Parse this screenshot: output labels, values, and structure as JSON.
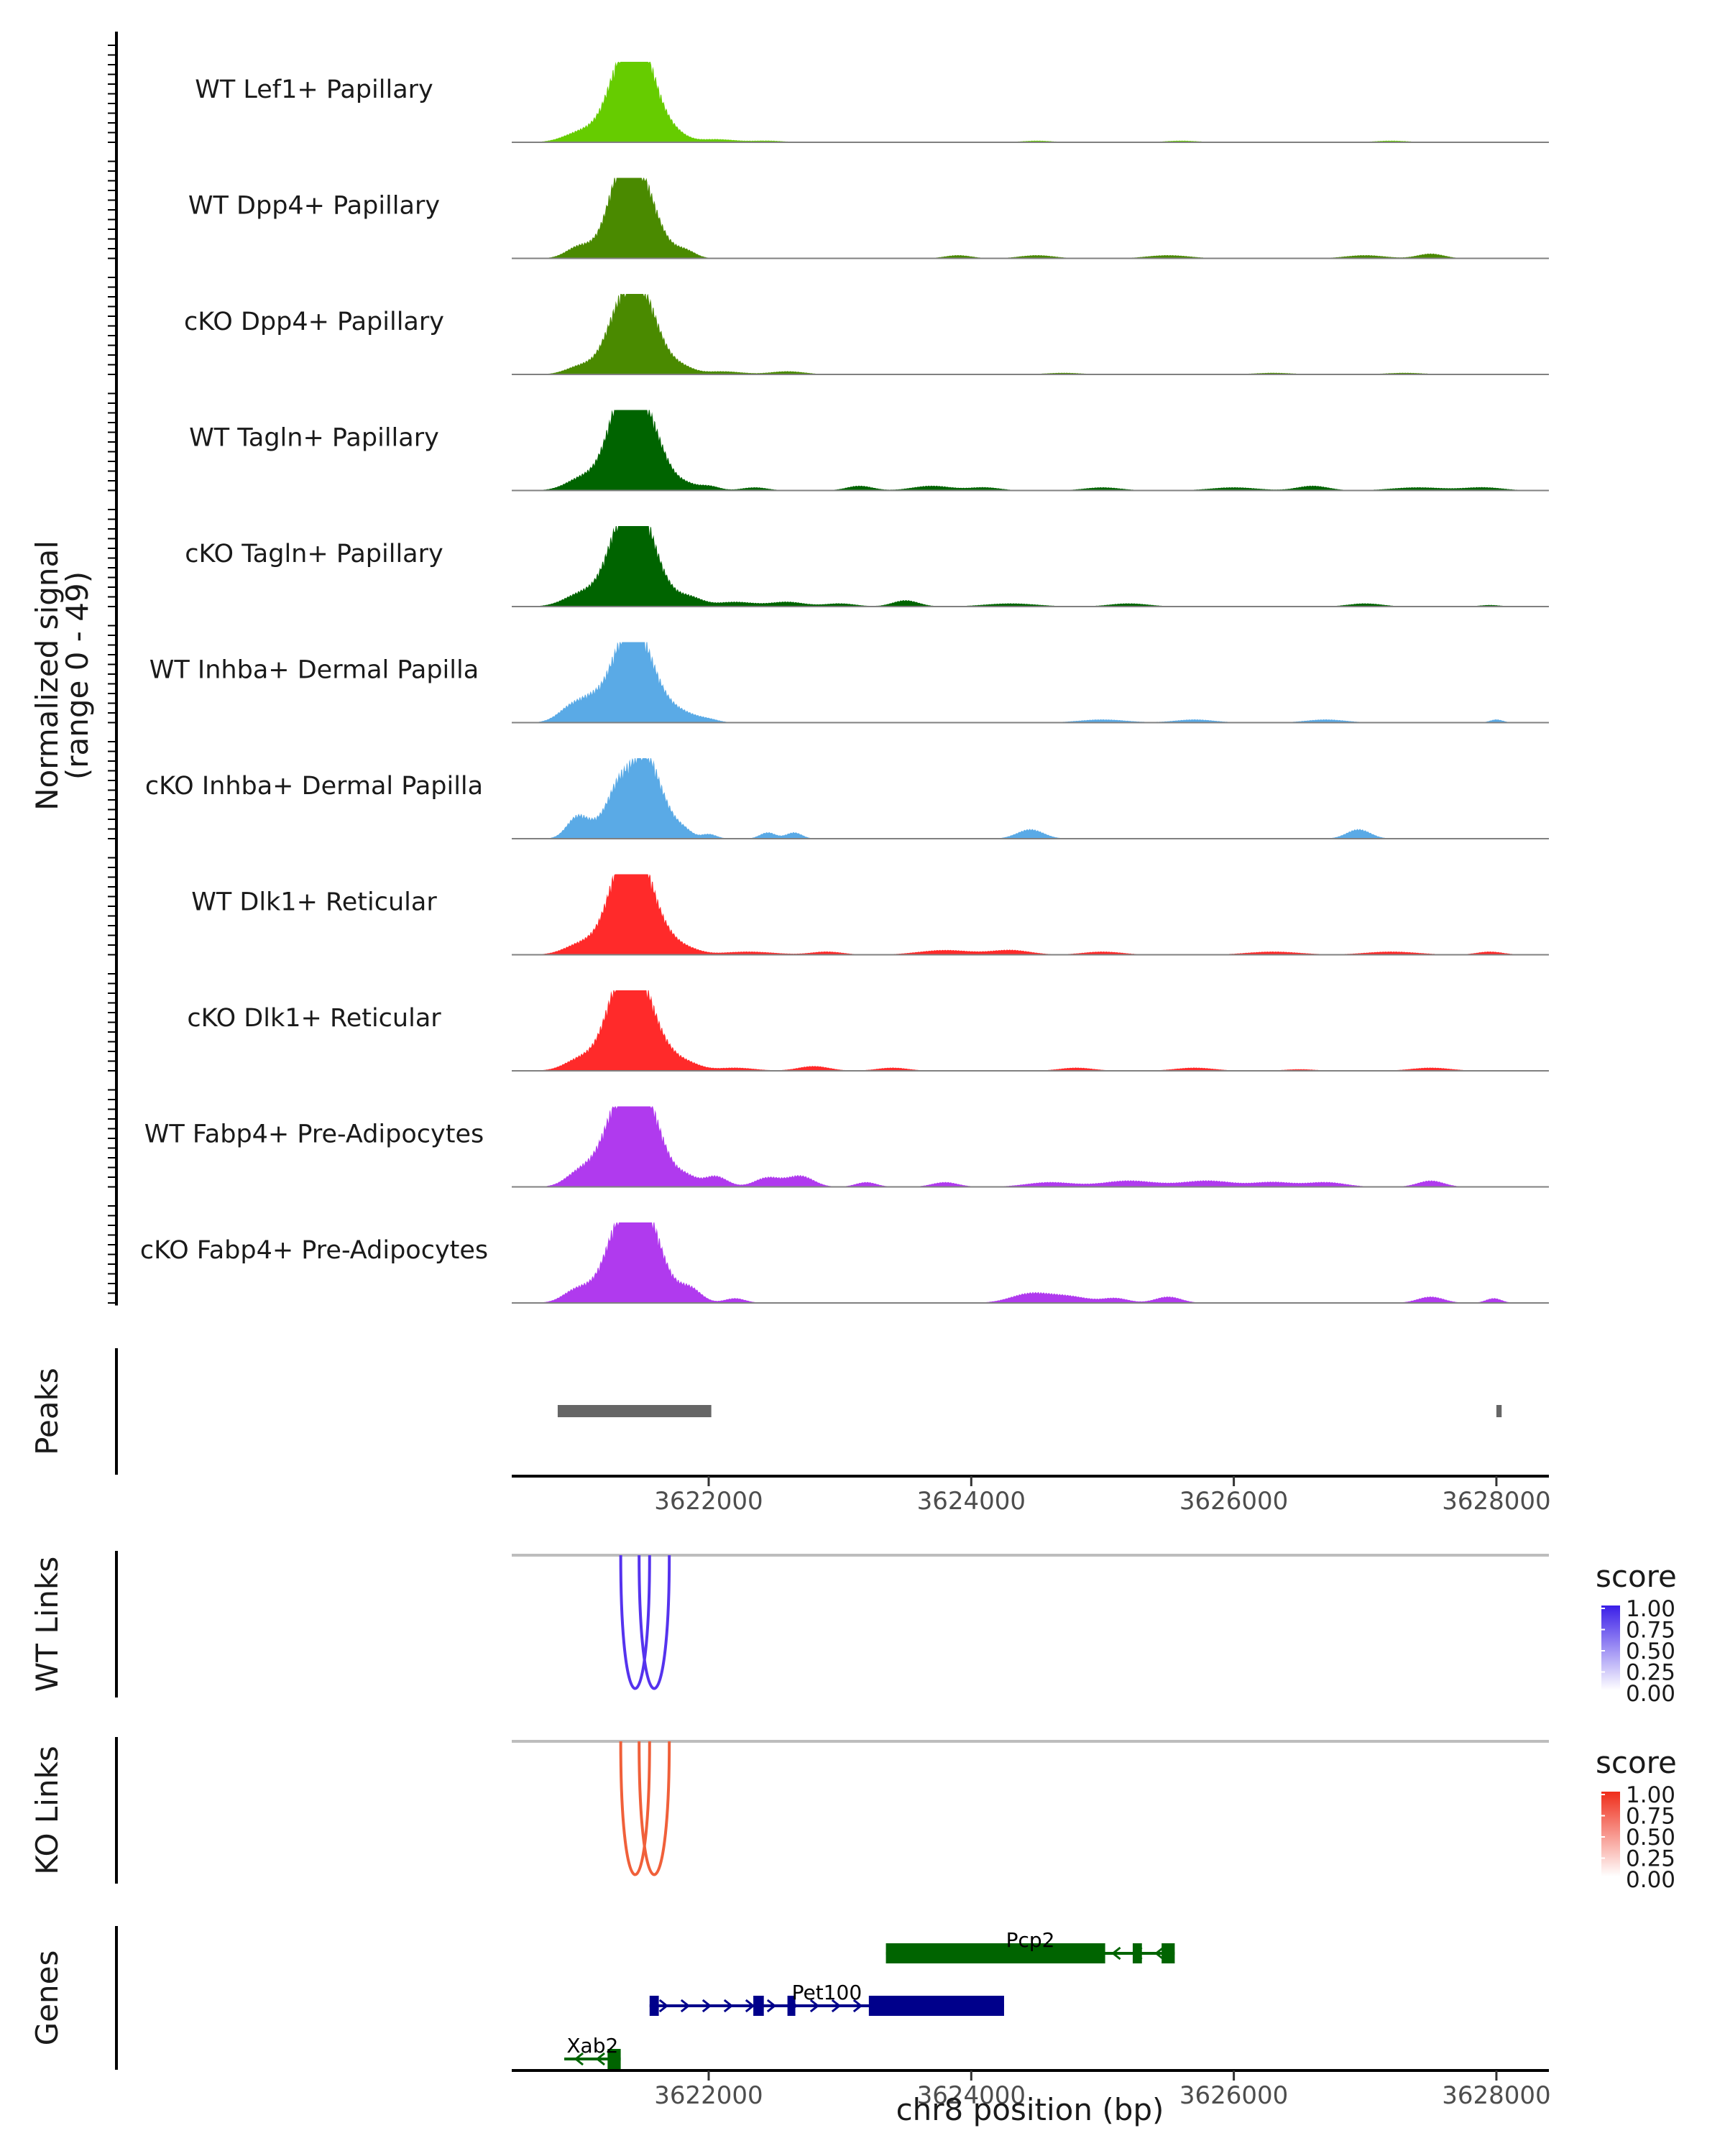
{
  "chart_data": {
    "type": "area",
    "title": "",
    "xlabel": "chr8 position (bp)",
    "x_range": [
      3620500,
      3628400
    ],
    "x_ticks": [
      3622000,
      3624000,
      3626000,
      3628000
    ],
    "x_tick_labels": [
      "3622000",
      "3624000",
      "3626000",
      "3628000"
    ],
    "coverage": {
      "ylabel_line1": "Normalized signal",
      "ylabel_line2": "(range 0 - 49)",
      "ylim": [
        0,
        49
      ],
      "tracks": [
        {
          "name": "WT Lef1+ Papillary",
          "color": "#66cc00",
          "peaks": [
            [
              3621000,
              3,
              120
            ],
            [
              3621200,
              8,
              180
            ],
            [
              3621340,
              40,
              110
            ],
            [
              3621480,
              36,
              100
            ],
            [
              3621580,
              18,
              110
            ],
            [
              3621750,
              4,
              90
            ],
            [
              3622050,
              2,
              150
            ],
            [
              3622450,
              1,
              120
            ],
            [
              3624500,
              1,
              120
            ],
            [
              3625600,
              1,
              130
            ],
            [
              3627200,
              1,
              130
            ]
          ]
        },
        {
          "name": "WT Dpp4+ Papillary",
          "color": "#4a8a00",
          "peaks": [
            [
              3621000,
              5,
              90
            ],
            [
              3621200,
              7,
              160
            ],
            [
              3621330,
              44,
              100
            ],
            [
              3621470,
              34,
              100
            ],
            [
              3621580,
              16,
              110
            ],
            [
              3621820,
              5,
              80
            ],
            [
              3623900,
              2,
              100
            ],
            [
              3624500,
              2,
              130
            ],
            [
              3625500,
              2,
              160
            ],
            [
              3627000,
              2,
              150
            ],
            [
              3627500,
              3,
              100
            ]
          ]
        },
        {
          "name": "cKO Dpp4+ Papillary",
          "color": "#4a8a00",
          "peaks": [
            [
              3621000,
              3,
              100
            ],
            [
              3621200,
              6,
              160
            ],
            [
              3621340,
              38,
              110
            ],
            [
              3621490,
              33,
              100
            ],
            [
              3621600,
              15,
              110
            ],
            [
              3621800,
              4,
              90
            ],
            [
              3622100,
              2,
              150
            ],
            [
              3622600,
              2,
              130
            ],
            [
              3624700,
              1,
              140
            ],
            [
              3626300,
              1,
              150
            ],
            [
              3627300,
              1,
              150
            ]
          ]
        },
        {
          "name": "WT Tagln+ Papillary",
          "color": "#006400",
          "peaks": [
            [
              3621000,
              3,
              100
            ],
            [
              3621200,
              10,
              180
            ],
            [
              3621340,
              44,
              110
            ],
            [
              3621480,
              38,
              110
            ],
            [
              3621620,
              16,
              100
            ],
            [
              3621820,
              4,
              80
            ],
            [
              3622000,
              3,
              80
            ],
            [
              3622350,
              2,
              100
            ],
            [
              3623150,
              3,
              100
            ],
            [
              3623700,
              3,
              150
            ],
            [
              3624100,
              2,
              120
            ],
            [
              3625000,
              2,
              140
            ],
            [
              3626000,
              2,
              180
            ],
            [
              3626600,
              3,
              120
            ],
            [
              3627400,
              2,
              200
            ],
            [
              3627900,
              2,
              150
            ]
          ]
        },
        {
          "name": "cKO Tagln+ Papillary",
          "color": "#006400",
          "peaks": [
            [
              3621000,
              4,
              120
            ],
            [
              3621200,
              9,
              180
            ],
            [
              3621340,
              42,
              110
            ],
            [
              3621480,
              36,
              100
            ],
            [
              3621600,
              17,
              110
            ],
            [
              3621850,
              6,
              100
            ],
            [
              3622200,
              3,
              150
            ],
            [
              3622600,
              3,
              130
            ],
            [
              3623000,
              2,
              120
            ],
            [
              3623500,
              4,
              100
            ],
            [
              3624300,
              2,
              200
            ],
            [
              3625200,
              2,
              150
            ],
            [
              3627000,
              2,
              130
            ],
            [
              3627950,
              1,
              80
            ]
          ]
        },
        {
          "name": "WT Inhba+ Dermal Papilla",
          "color": "#5aaae6",
          "peaks": [
            [
              3620980,
              12,
              110
            ],
            [
              3621120,
              8,
              80
            ],
            [
              3621330,
              42,
              110
            ],
            [
              3621480,
              36,
              100
            ],
            [
              3621620,
              14,
              110
            ],
            [
              3621820,
              5,
              100
            ],
            [
              3622000,
              2,
              80
            ],
            [
              3625000,
              2,
              180
            ],
            [
              3625700,
              2,
              150
            ],
            [
              3626700,
              2,
              150
            ],
            [
              3628000,
              2,
              50
            ]
          ]
        },
        {
          "name": "cKO Inhba+ Dermal Papilla",
          "color": "#5aaae6",
          "peaks": [
            [
              3621000,
              14,
              80
            ],
            [
              3621150,
              6,
              80
            ],
            [
              3621320,
              34,
              90
            ],
            [
              3621500,
              46,
              90
            ],
            [
              3621640,
              20,
              100
            ],
            [
              3621820,
              4,
              60
            ],
            [
              3622000,
              3,
              60
            ],
            [
              3622450,
              4,
              60
            ],
            [
              3622650,
              4,
              60
            ],
            [
              3624450,
              6,
              100
            ],
            [
              3626950,
              6,
              90
            ]
          ]
        },
        {
          "name": "WT Dlk1+ Reticular",
          "color": "#ff2a2a",
          "peaks": [
            [
              3621000,
              4,
              120
            ],
            [
              3621200,
              8,
              160
            ],
            [
              3621340,
              46,
              110
            ],
            [
              3621480,
              38,
              100
            ],
            [
              3621620,
              16,
              120
            ],
            [
              3621850,
              3,
              100
            ],
            [
              3622300,
              2,
              200
            ],
            [
              3622900,
              2,
              120
            ],
            [
              3623800,
              3,
              200
            ],
            [
              3624300,
              3,
              150
            ],
            [
              3625000,
              2,
              150
            ],
            [
              3626300,
              2,
              200
            ],
            [
              3627200,
              2,
              200
            ],
            [
              3627950,
              2,
              100
            ]
          ]
        },
        {
          "name": "cKO Dlk1+ Reticular",
          "color": "#ff2a2a",
          "peaks": [
            [
              3621000,
              4,
              110
            ],
            [
              3621200,
              9,
              170
            ],
            [
              3621330,
              46,
              110
            ],
            [
              3621480,
              36,
              100
            ],
            [
              3621620,
              16,
              120
            ],
            [
              3621850,
              4,
              100
            ],
            [
              3622200,
              2,
              150
            ],
            [
              3622800,
              3,
              120
            ],
            [
              3623400,
              2,
              120
            ],
            [
              3624800,
              2,
              130
            ],
            [
              3625700,
              2,
              150
            ],
            [
              3626500,
              1,
              120
            ],
            [
              3627500,
              2,
              150
            ]
          ]
        },
        {
          "name": "WT Fabp4+ Pre-Adipocytes",
          "color": "#b03aee",
          "peaks": [
            [
              3621000,
              6,
              100
            ],
            [
              3621180,
              12,
              140
            ],
            [
              3621320,
              40,
              110
            ],
            [
              3621490,
              46,
              110
            ],
            [
              3621620,
              16,
              110
            ],
            [
              3621830,
              6,
              80
            ],
            [
              3622050,
              7,
              90
            ],
            [
              3622450,
              6,
              100
            ],
            [
              3622700,
              7,
              100
            ],
            [
              3623200,
              3,
              80
            ],
            [
              3623800,
              3,
              100
            ],
            [
              3624600,
              3,
              180
            ],
            [
              3625200,
              4,
              200
            ],
            [
              3625800,
              4,
              200
            ],
            [
              3626300,
              3,
              150
            ],
            [
              3626700,
              3,
              150
            ],
            [
              3627500,
              4,
              100
            ]
          ]
        },
        {
          "name": "cKO Fabp4+ Pre-Adipocytes",
          "color": "#b03aee",
          "peaks": [
            [
              3620980,
              6,
              100
            ],
            [
              3621180,
              10,
              140
            ],
            [
              3621320,
              40,
              100
            ],
            [
              3621490,
              48,
              100
            ],
            [
              3621620,
              20,
              100
            ],
            [
              3621850,
              10,
              90
            ],
            [
              3622200,
              3,
              80
            ],
            [
              3624450,
              6,
              150
            ],
            [
              3624750,
              4,
              150
            ],
            [
              3625100,
              3,
              100
            ],
            [
              3625500,
              4,
              100
            ],
            [
              3627500,
              4,
              100
            ],
            [
              3627980,
              3,
              60
            ]
          ]
        }
      ]
    },
    "peaks_track": {
      "label": "Peaks",
      "color": "#666666",
      "regions": [
        [
          3620850,
          3622020
        ],
        [
          3628000,
          3628040
        ]
      ]
    },
    "links": [
      {
        "label": "WT Links",
        "legend_title": "score",
        "color": "#5533ee",
        "legend_top": "#3a1ee8",
        "legend_ticks": [
          "1.00",
          "0.75",
          "0.50",
          "0.25",
          "0.00"
        ],
        "arcs": [
          [
            3621330,
            3621550
          ],
          [
            3621470,
            3621700
          ]
        ]
      },
      {
        "label": "KO Links",
        "legend_title": "score",
        "color": "#f0603a",
        "legend_top": "#ef2d1a",
        "legend_ticks": [
          "1.00",
          "0.75",
          "0.50",
          "0.25",
          "0.00"
        ],
        "arcs": [
          [
            3621330,
            3621550
          ],
          [
            3621470,
            3621700
          ]
        ]
      }
    ],
    "genes": {
      "label": "Genes",
      "items": [
        {
          "name": "Pcp2",
          "color": "#006400",
          "strand": "-",
          "row": 0,
          "start": 3623350,
          "end": 3625550,
          "exons": [
            [
              3623350,
              3625020
            ],
            [
              3625230,
              3625300
            ],
            [
              3625450,
              3625550
            ]
          ]
        },
        {
          "name": "Pet100",
          "color": "#00008b",
          "strand": "+",
          "row": 1,
          "start": 3621550,
          "end": 3624250,
          "exons": [
            [
              3621550,
              3621620
            ],
            [
              3622340,
              3622420
            ],
            [
              3622600,
              3622660
            ],
            [
              3623220,
              3624250
            ]
          ]
        },
        {
          "name": "Xab2",
          "color": "#006400",
          "strand": "-",
          "row": 2,
          "start": 3620900,
          "end": 3621330,
          "exons": [
            [
              3621230,
              3621330
            ]
          ]
        }
      ]
    }
  }
}
